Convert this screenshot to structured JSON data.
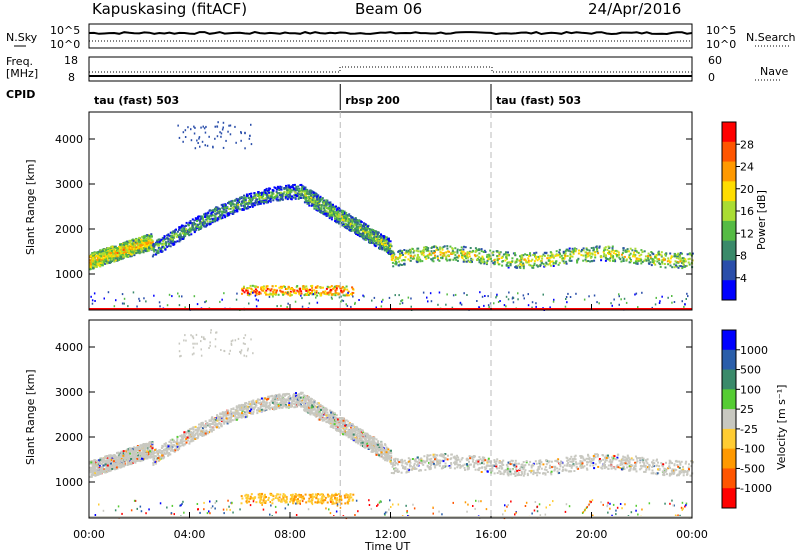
{
  "header": {
    "title": "Kapuskasing (fitACF)",
    "beam": "Beam 06",
    "date": "24/Apr/2016"
  },
  "left_labels": {
    "nsky": "N.Sky",
    "freq": "Freq.",
    "mhz": "[MHz]",
    "cpid": "CPID"
  },
  "right_labels": {
    "nsearch": "N.Search",
    "nave": "Nave"
  },
  "noise_panel": {
    "ticks_left": [
      "10^5",
      "10^0"
    ],
    "ticks_right": [
      "10^5",
      "10^0"
    ]
  },
  "freq_panel": {
    "ticks_left": [
      "18",
      "8"
    ],
    "ticks_right": [
      "60",
      "0"
    ]
  },
  "cpid_segments": [
    {
      "label": "tau (fast) 503",
      "start_h": 0,
      "end_h": 10
    },
    {
      "label": "rbsp 200",
      "start_h": 10,
      "end_h": 16
    },
    {
      "label": "tau (fast) 503",
      "start_h": 16,
      "end_h": 24
    }
  ],
  "colors": {
    "power": [
      "#0000ff",
      "#2a4eaa",
      "#3a8a6a",
      "#55bb44",
      "#aadd33",
      "#ffdd00",
      "#ff9900",
      "#ff5500",
      "#ff0000"
    ],
    "velocity": [
      "#ff0000",
      "#ff5500",
      "#ff9900",
      "#ffcc33",
      "#c8c8c0",
      "#55cc33",
      "#3a8a6a",
      "#2a5eaa",
      "#0000ff"
    ],
    "ground": "#c8c8c0"
  },
  "chart_data": [
    {
      "type": "heatmap",
      "name": "power",
      "xlabel": "",
      "ylabel": "Slant Range [km]",
      "yticks": [
        "1000",
        "2000",
        "3000",
        "4000"
      ],
      "ylim": [
        200,
        4600
      ],
      "xlim_hours": [
        0,
        24
      ],
      "colorbar_label": "Power [dB]",
      "colorbar_ticks": [
        "4",
        "8",
        "12",
        "16",
        "20",
        "24",
        "28"
      ],
      "colorbar_range": [
        0,
        30
      ],
      "bands": [
        {
          "h": [
            0,
            2.5
          ],
          "r": [
            1300,
            1750
          ],
          "level": 20
        },
        {
          "h": [
            2.5,
            8.5
          ],
          "r": [
            1600,
            2900
          ],
          "level": 12
        },
        {
          "h": [
            8.5,
            12
          ],
          "r": [
            2800,
            1600
          ],
          "level": 14
        },
        {
          "h": [
            12,
            24
          ],
          "r": [
            1200,
            1600
          ],
          "level": 18
        },
        {
          "h": [
            6,
            10.5
          ],
          "r": [
            550,
            800
          ],
          "level": 26
        }
      ]
    },
    {
      "type": "heatmap",
      "name": "velocity",
      "xlabel": "Time UT",
      "ylabel": "Slant Range [km]",
      "yticks": [
        "1000",
        "2000",
        "3000",
        "4000"
      ],
      "xticks": [
        "00:00",
        "04:00",
        "08:00",
        "12:00",
        "16:00",
        "20:00",
        "00:00"
      ],
      "ylim": [
        200,
        4600
      ],
      "xlim_hours": [
        0,
        24
      ],
      "colorbar_label": "Velocity [m s⁻¹]",
      "colorbar_ticks": [
        "1000",
        "500",
        "100",
        "25",
        "-25",
        "-100",
        "-500",
        "-1000"
      ]
    }
  ]
}
